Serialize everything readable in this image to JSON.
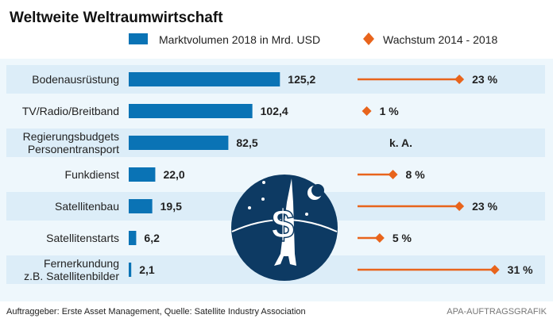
{
  "chart_data": {
    "type": "bar",
    "title": "Weltweite Weltraumwirtschaft",
    "legend": [
      {
        "label": "Marktvolumen 2018 in Mrd. USD",
        "color": "#0a73b5",
        "marker": "bar"
      },
      {
        "label": "Wachstum 2014 - 2018",
        "color": "#e8641c",
        "marker": "diamond"
      }
    ],
    "legend_placement": "top",
    "categories": [
      [
        "Bodenausrüstung"
      ],
      [
        "TV/Radio/Breitband"
      ],
      [
        "Regierungsbudgets",
        "Personentransport"
      ],
      [
        "Funkdienst"
      ],
      [
        "Satellitenbau"
      ],
      [
        "Satellitenstarts"
      ],
      [
        "Fernerkundung",
        "z.B. Satellitenbilder"
      ]
    ],
    "series": [
      {
        "name": "Marktvolumen 2018 in Mrd. USD",
        "values": [
          125.2,
          102.4,
          82.5,
          22.0,
          19.5,
          6.2,
          2.1
        ],
        "labels": [
          "125,2",
          "102,4",
          "82,5",
          "22,0",
          "19,5",
          "6,2",
          "2,1"
        ]
      },
      {
        "name": "Wachstum 2014 - 2018",
        "values": [
          23,
          1,
          null,
          8,
          23,
          5,
          31
        ],
        "labels": [
          "23 %",
          "1 %",
          "k. A.",
          "8 %",
          "23 %",
          "5 %",
          "31 %"
        ]
      }
    ],
    "xlabel": "",
    "ylabel": ""
  },
  "footer": {
    "source": "Auftraggeber: Erste Asset Management, Quelle: Satellite Industry Association",
    "credit": "APA-AUFTRAGSGRAFIK"
  },
  "colors": {
    "bar": "#0a73b5",
    "growth": "#e8641c",
    "row_dark": "#dcedf8",
    "row_light": "#eef7fc",
    "logo": "#0d3a63"
  }
}
